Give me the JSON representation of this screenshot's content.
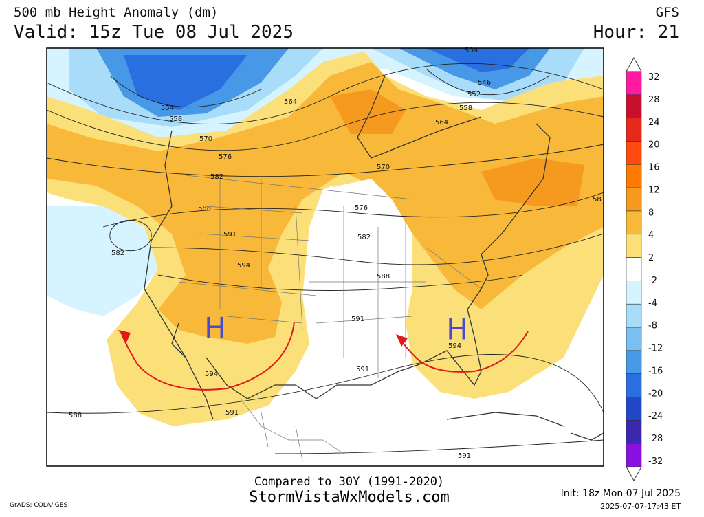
{
  "header": {
    "title": "500 mb Height Anomaly (dm)",
    "valid": "Valid: 15z Tue 08 Jul 2025",
    "model": "GFS",
    "hour": "Hour: 21"
  },
  "colorbar": {
    "levels": [
      32,
      28,
      24,
      20,
      16,
      12,
      8,
      4,
      2,
      -2,
      -4,
      -8,
      -12,
      -16,
      -20,
      -24,
      -28,
      -32
    ],
    "colors": [
      "#ff1aa0",
      "#c8102e",
      "#e8281a",
      "#ff4a10",
      "#ff7a00",
      "#f59a1e",
      "#f8b83a",
      "#fbe07a",
      "#ffffff",
      "#d6f4ff",
      "#a8dcf8",
      "#78bff2",
      "#4898e8",
      "#2a6fe0",
      "#2048c8",
      "#3a28b0",
      "#8a10e0"
    ]
  },
  "map": {
    "contour_labels": [
      "534",
      "546",
      "552",
      "558",
      "564",
      "554",
      "558",
      "564",
      "570",
      "576",
      "582",
      "588",
      "591",
      "594",
      "582",
      "570",
      "576",
      "582",
      "588",
      "591",
      "594",
      "591",
      "594",
      "591",
      "588",
      "591",
      "58"
    ],
    "highs": [
      "H",
      "H"
    ]
  },
  "footer": {
    "compared": "Compared to 30Y (1991-2020)",
    "site": "StormVistaWxModels.com",
    "init": "Init: 18z Mon 07 Jul 2025",
    "timestamp": "2025-07-07-17:43 ET",
    "credit": "GrADS: COLA/IGES"
  }
}
